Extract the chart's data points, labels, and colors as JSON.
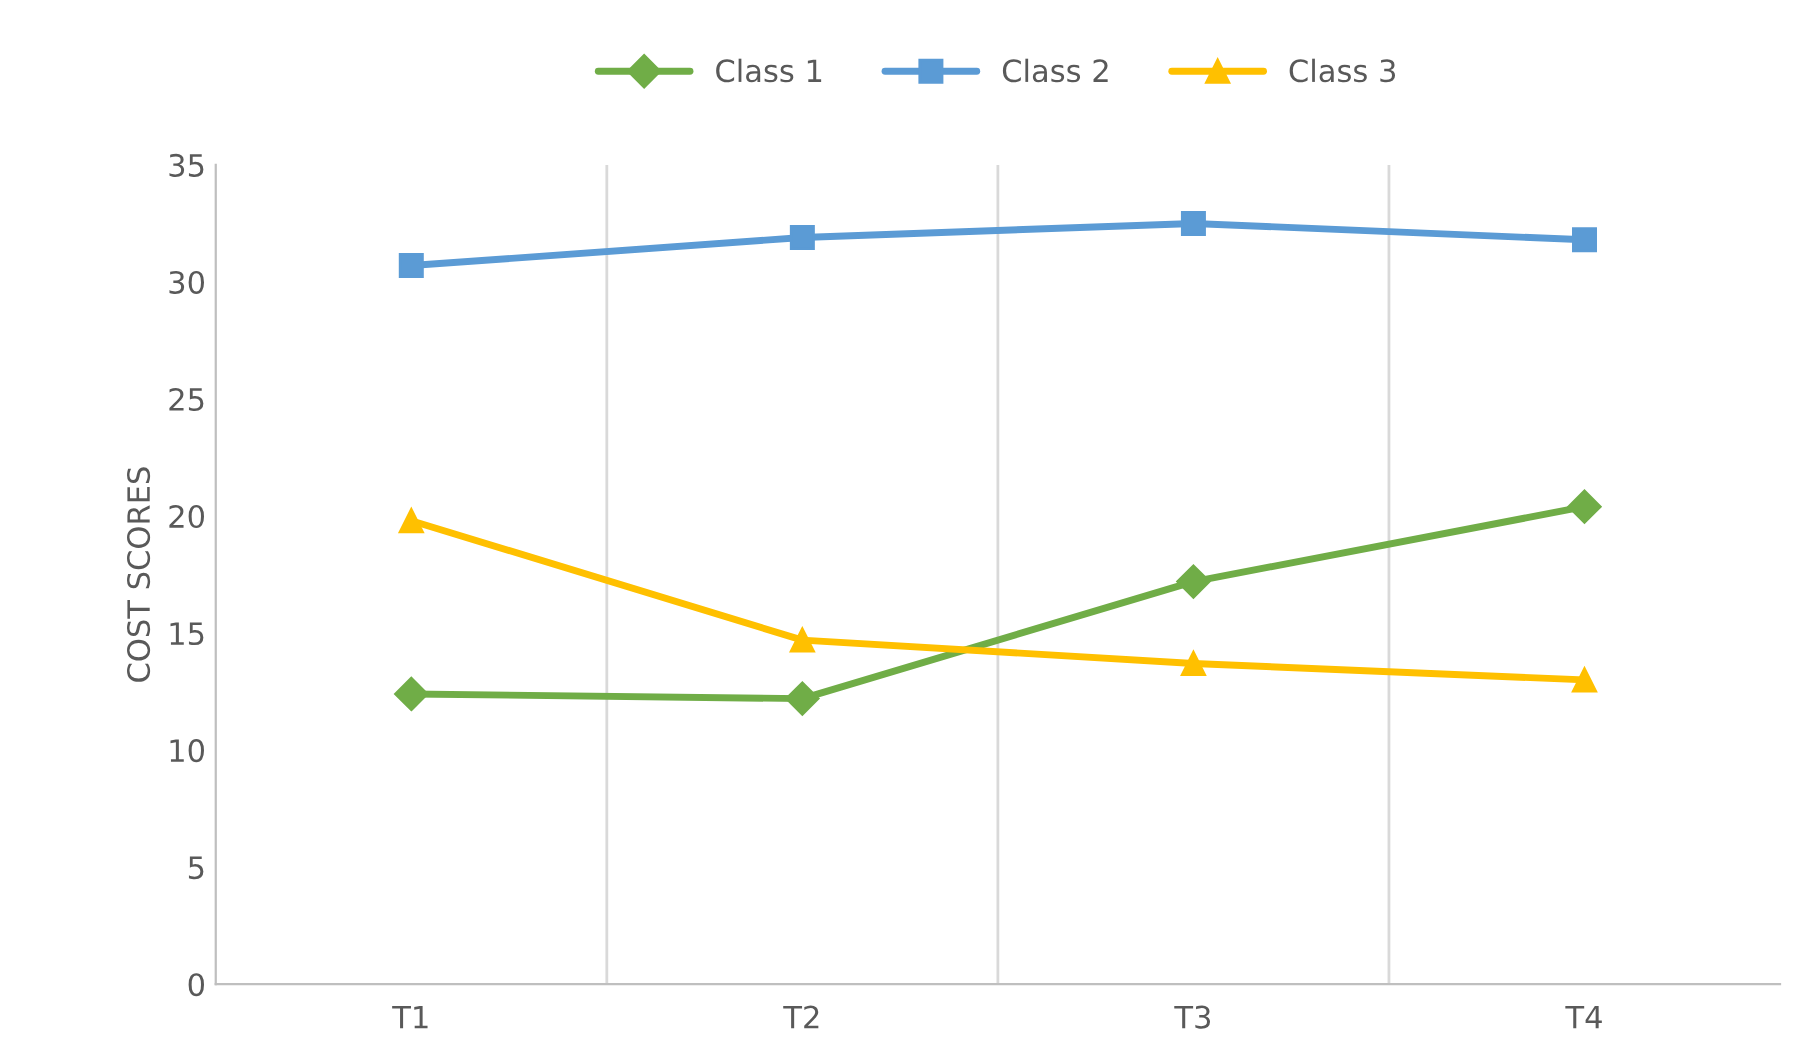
{
  "chart_data": {
    "type": "line",
    "ylabel": "COST SCORES",
    "categories": [
      "T1",
      "T2",
      "T3",
      "T4"
    ],
    "series": [
      {
        "name": "Class 1",
        "color": "#70ad47",
        "marker": "diamond",
        "values": [
          12.4,
          12.2,
          17.2,
          20.4
        ]
      },
      {
        "name": "Class 2",
        "color": "#5b9bd5",
        "marker": "square",
        "values": [
          30.7,
          31.9,
          32.5,
          31.8
        ]
      },
      {
        "name": "Class 3",
        "color": "#ffc000",
        "marker": "triangle",
        "values": [
          19.8,
          14.7,
          13.7,
          13.0
        ]
      }
    ],
    "ylim": [
      0,
      35
    ],
    "yticks": [
      0,
      5,
      10,
      15,
      20,
      25,
      30,
      35
    ],
    "grid": "x",
    "legend": "top",
    "line_style": "solid"
  }
}
